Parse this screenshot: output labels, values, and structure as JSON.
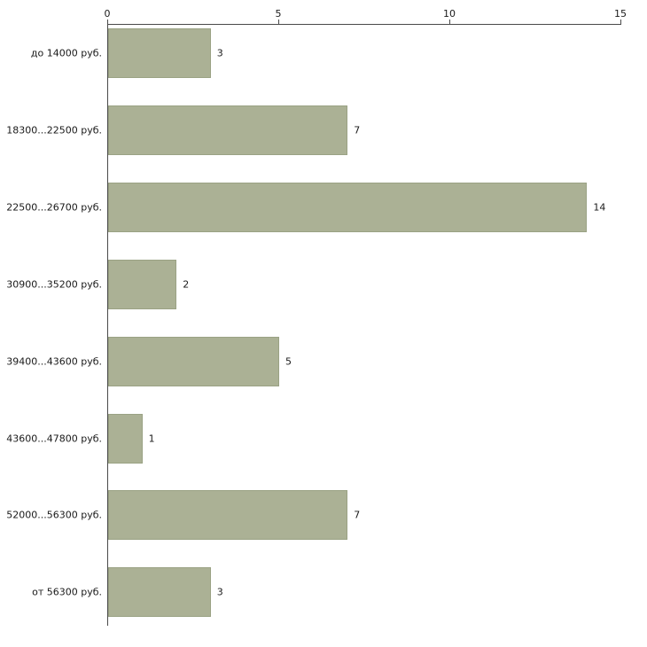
{
  "chart_data": {
    "type": "bar",
    "orientation": "horizontal",
    "title": "",
    "xlabel": "",
    "ylabel": "",
    "categories": [
      "до 14000 руб.",
      "18300...22500 руб.",
      "22500...26700 руб.",
      "30900...35200 руб.",
      "39400...43600 руб.",
      "43600...47800 руб.",
      "52000...56300 руб.",
      "от 56300 руб."
    ],
    "values": [
      3,
      7,
      14,
      2,
      5,
      1,
      7,
      3
    ],
    "value_labels": [
      "3",
      "7",
      "14",
      "2",
      "5",
      "1",
      "7",
      "3"
    ],
    "xlim": [
      0,
      15
    ],
    "x_ticks": [
      0,
      5,
      10,
      15
    ],
    "x_tick_labels": [
      "0",
      "5",
      "10",
      "15"
    ],
    "grid": false,
    "legend": false,
    "axis_position": "top",
    "colors": {
      "bar_fill": "#abb195",
      "bar_border": "#9aa284",
      "axis": "#4a4a4a",
      "text": "#1a1a1a",
      "background": "#ffffff"
    }
  }
}
